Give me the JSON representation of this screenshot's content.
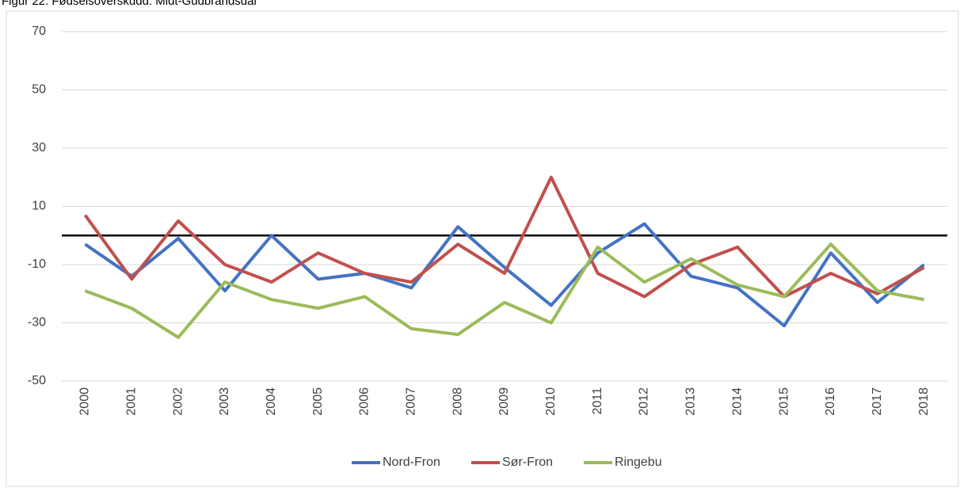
{
  "chart_data": {
    "type": "line",
    "title": "Figur 22. Fødselsoverskudd. Midt-Gudbrandsdal",
    "categories": [
      "2000",
      "2001",
      "2002",
      "2003",
      "2004",
      "2005",
      "2006",
      "2007",
      "2008",
      "2009",
      "2010",
      "2011",
      "2012",
      "2013",
      "2014",
      "2015",
      "2016",
      "2017",
      "2018"
    ],
    "series": [
      {
        "name": "Nord-Fron",
        "color": "#4472c4",
        "values": [
          -3,
          -14,
          -1,
          -19,
          0,
          -15,
          -13,
          -18,
          3,
          -11,
          -24,
          -6,
          4,
          -14,
          -18,
          -31,
          -6,
          -23,
          -10
        ]
      },
      {
        "name": "Sør-Fron",
        "color": "#c0504d",
        "values": [
          7,
          -15,
          5,
          -10,
          -16,
          -6,
          -13,
          -16,
          -3,
          -13,
          20,
          -13,
          -21,
          -10,
          -4,
          -21,
          -13,
          -20,
          -11
        ]
      },
      {
        "name": "Ringebu",
        "color": "#9bbb59",
        "values": [
          -19,
          -25,
          -35,
          -16,
          -22,
          -25,
          -21,
          -32,
          -34,
          -23,
          -30,
          -4,
          -16,
          -8,
          -17,
          -21,
          -3,
          -19,
          -22
        ]
      }
    ],
    "ylim": [
      -50,
      70
    ],
    "yticks": [
      -50,
      -30,
      -10,
      10,
      30,
      50,
      70
    ],
    "grid": true,
    "legend": "bottom"
  }
}
